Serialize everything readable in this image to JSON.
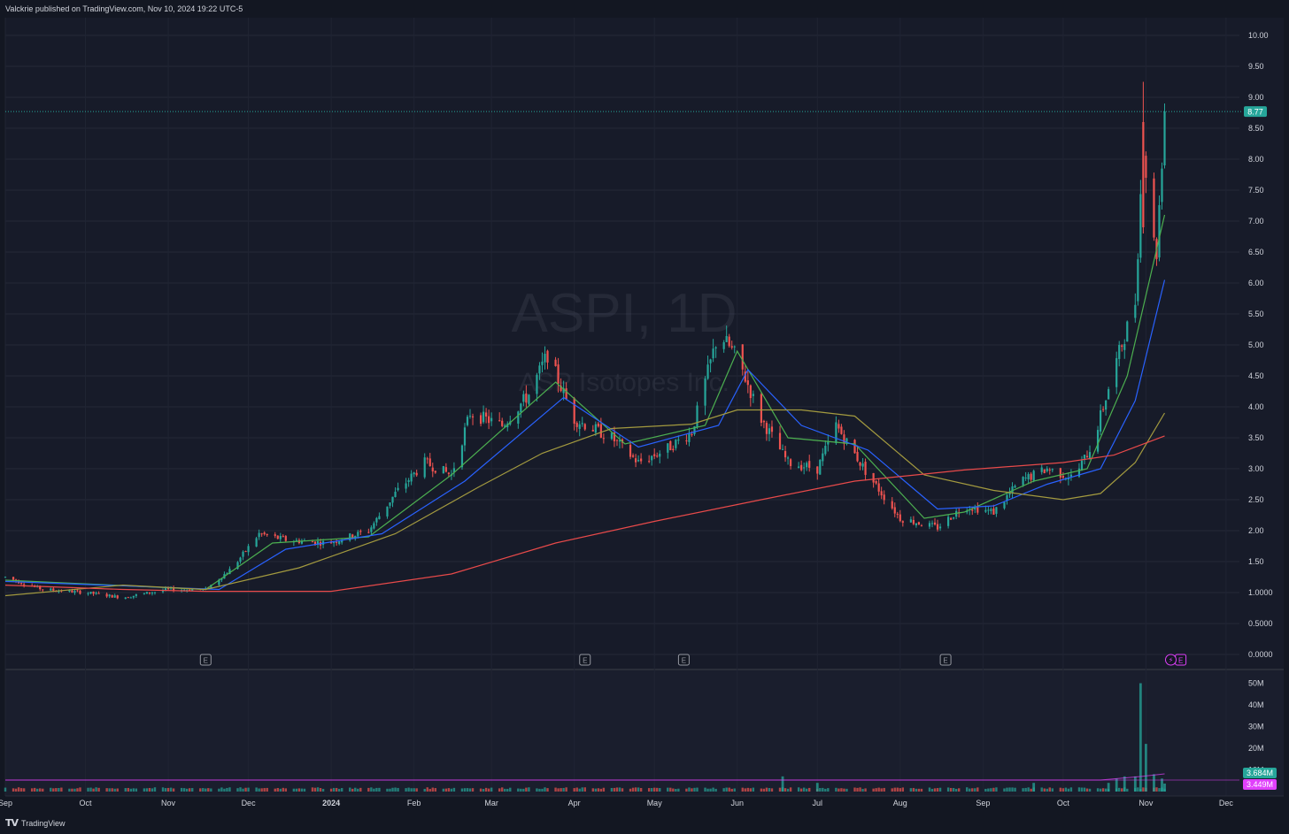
{
  "header": {
    "publish_line": "Valckrie published on TradingView.com, Nov 10, 2024 19:22 UTC-5"
  },
  "watermark": {
    "symbol_line": "ASPI, 1D",
    "company_line": "ASP Isotopes Inc."
  },
  "footer": {
    "brand": "TradingView"
  },
  "colors": {
    "background": "#131722",
    "up": "#26a69a",
    "down": "#ef5350",
    "ema_fast": "#4caf50",
    "ema_mid": "#2962ff",
    "sma_slow": "#a39a3f",
    "sma_long": "#e84a4a",
    "price_label": "#26a69a",
    "vol_label_1": "#26a69a",
    "vol_label_2": "#e040fb"
  },
  "chart_data": {
    "type": "candlestick",
    "symbol": "ASPI",
    "interval": "1D",
    "last_price": "8.77",
    "price_axis_ticks": [
      "10.00",
      "9.50",
      "9.00",
      "8.50",
      "8.00",
      "7.50",
      "7.00",
      "6.50",
      "6.00",
      "5.50",
      "5.00",
      "4.50",
      "4.00",
      "3.50",
      "3.00",
      "2.50",
      "2.00",
      "1.50",
      "1.0000",
      "0.5000",
      "0.0000"
    ],
    "ylim": [
      0,
      10
    ],
    "time_axis_labels": [
      "Sep",
      "Oct",
      "Nov",
      "Dec",
      "2024",
      "Feb",
      "Mar",
      "Apr",
      "May",
      "Jun",
      "Jul",
      "Aug",
      "Sep",
      "Oct",
      "Nov",
      "Dec"
    ],
    "price_path": [
      [
        "2023-09-01",
        1.25
      ],
      [
        "2023-09-15",
        1.05
      ],
      [
        "2023-10-01",
        1.0
      ],
      [
        "2023-10-15",
        0.92
      ],
      [
        "2023-11-01",
        1.05
      ],
      [
        "2023-11-15",
        1.05
      ],
      [
        "2023-11-25",
        1.4
      ],
      [
        "2023-12-05",
        1.95
      ],
      [
        "2023-12-15",
        1.85
      ],
      [
        "2023-12-31",
        1.8
      ],
      [
        "2024-01-15",
        2.0
      ],
      [
        "2024-01-25",
        2.6
      ],
      [
        "2024-02-05",
        3.1
      ],
      [
        "2024-02-15",
        2.9
      ],
      [
        "2024-02-22",
        3.9
      ],
      [
        "2024-03-05",
        3.7
      ],
      [
        "2024-03-15",
        4.2
      ],
      [
        "2024-03-22",
        4.85
      ],
      [
        "2024-04-01",
        3.8
      ],
      [
        "2024-04-15",
        3.5
      ],
      [
        "2024-04-25",
        3.1
      ],
      [
        "2024-05-05",
        3.3
      ],
      [
        "2024-05-15",
        3.6
      ],
      [
        "2024-05-25",
        5.2
      ],
      [
        "2024-06-01",
        4.8
      ],
      [
        "2024-06-10",
        3.8
      ],
      [
        "2024-06-20",
        3.1
      ],
      [
        "2024-07-01",
        3.0
      ],
      [
        "2024-07-08",
        3.7
      ],
      [
        "2024-07-20",
        2.9
      ],
      [
        "2024-08-01",
        2.2
      ],
      [
        "2024-08-15",
        2.05
      ],
      [
        "2024-08-25",
        2.4
      ],
      [
        "2024-09-05",
        2.3
      ],
      [
        "2024-09-15",
        2.8
      ],
      [
        "2024-09-25",
        3.0
      ],
      [
        "2024-10-05",
        2.85
      ],
      [
        "2024-10-12",
        3.4
      ],
      [
        "2024-10-20",
        4.6
      ],
      [
        "2024-10-28",
        5.7
      ],
      [
        "2024-10-31",
        8.3
      ],
      [
        "2024-11-03",
        6.8
      ],
      [
        "2024-11-05",
        6.5
      ],
      [
        "2024-11-08",
        8.77
      ]
    ],
    "moving_averages": [
      {
        "color_key": "ema_fast",
        "path": [
          [
            "2023-09-01",
            1.2
          ],
          [
            "2023-11-15",
            1.05
          ],
          [
            "2023-12-10",
            1.8
          ],
          [
            "2024-01-15",
            1.9
          ],
          [
            "2024-02-15",
            2.9
          ],
          [
            "2024-03-25",
            4.4
          ],
          [
            "2024-04-20",
            3.4
          ],
          [
            "2024-05-20",
            3.7
          ],
          [
            "2024-06-01",
            4.9
          ],
          [
            "2024-06-20",
            3.5
          ],
          [
            "2024-07-15",
            3.4
          ],
          [
            "2024-08-10",
            2.2
          ],
          [
            "2024-08-25",
            2.3
          ],
          [
            "2024-09-20",
            2.8
          ],
          [
            "2024-10-10",
            3.0
          ],
          [
            "2024-10-25",
            4.5
          ],
          [
            "2024-11-08",
            7.1
          ]
        ]
      },
      {
        "color_key": "ema_mid",
        "path": [
          [
            "2023-09-01",
            1.18
          ],
          [
            "2023-11-20",
            1.05
          ],
          [
            "2023-12-15",
            1.7
          ],
          [
            "2024-01-20",
            1.95
          ],
          [
            "2024-02-20",
            2.8
          ],
          [
            "2024-03-28",
            4.15
          ],
          [
            "2024-04-25",
            3.35
          ],
          [
            "2024-05-25",
            3.7
          ],
          [
            "2024-06-05",
            4.6
          ],
          [
            "2024-06-25",
            3.7
          ],
          [
            "2024-07-20",
            3.3
          ],
          [
            "2024-08-15",
            2.35
          ],
          [
            "2024-09-05",
            2.4
          ],
          [
            "2024-09-25",
            2.75
          ],
          [
            "2024-10-15",
            3.0
          ],
          [
            "2024-10-28",
            4.1
          ],
          [
            "2024-11-08",
            6.05
          ]
        ]
      },
      {
        "color_key": "sma_slow",
        "path": [
          [
            "2023-09-01",
            0.95
          ],
          [
            "2023-10-15",
            1.12
          ],
          [
            "2023-11-15",
            1.05
          ],
          [
            "2023-12-20",
            1.4
          ],
          [
            "2024-01-25",
            1.95
          ],
          [
            "2024-02-25",
            2.7
          ],
          [
            "2024-03-20",
            3.25
          ],
          [
            "2024-04-15",
            3.65
          ],
          [
            "2024-05-15",
            3.72
          ],
          [
            "2024-06-01",
            3.95
          ],
          [
            "2024-06-25",
            3.95
          ],
          [
            "2024-07-15",
            3.85
          ],
          [
            "2024-08-10",
            2.9
          ],
          [
            "2024-09-05",
            2.65
          ],
          [
            "2024-10-01",
            2.5
          ],
          [
            "2024-10-15",
            2.6
          ],
          [
            "2024-10-28",
            3.1
          ],
          [
            "2024-11-08",
            3.9
          ]
        ]
      },
      {
        "color_key": "sma_long",
        "path": [
          [
            "2023-09-01",
            1.12
          ],
          [
            "2023-10-15",
            1.05
          ],
          [
            "2023-11-15",
            1.02
          ],
          [
            "2024-01-01",
            1.02
          ],
          [
            "2024-02-15",
            1.3
          ],
          [
            "2024-03-25",
            1.8
          ],
          [
            "2024-05-01",
            2.15
          ],
          [
            "2024-06-10",
            2.5
          ],
          [
            "2024-07-15",
            2.8
          ],
          [
            "2024-08-25",
            2.98
          ],
          [
            "2024-10-01",
            3.1
          ],
          [
            "2024-10-20",
            3.22
          ],
          [
            "2024-11-08",
            3.53
          ]
        ]
      }
    ],
    "volume": {
      "axis_ticks": [
        "50M",
        "40M",
        "30M",
        "20M",
        "10M"
      ],
      "last_volume_label": "3.684M",
      "avg_volume_label": "3.449M",
      "spikes": [
        [
          "2024-06-18",
          7
        ],
        [
          "2024-07-01",
          4
        ],
        [
          "2024-09-20",
          4
        ],
        [
          "2024-10-18",
          4
        ],
        [
          "2024-10-21",
          6
        ],
        [
          "2024-10-24",
          7
        ],
        [
          "2024-10-28",
          7
        ],
        [
          "2024-10-30",
          50
        ],
        [
          "2024-11-01",
          22
        ],
        [
          "2024-11-04",
          8
        ],
        [
          "2024-11-07",
          6
        ],
        [
          "2024-11-08",
          3.684
        ]
      ]
    },
    "event_markers": {
      "earnings_dates": [
        "2023-11-15",
        "2024-04-05",
        "2024-05-12",
        "2024-08-18",
        "2024-11-14"
      ],
      "dividend_dates": [
        "2024-11-08"
      ],
      "earnings_glyph": "E",
      "dividend_glyph": "⚡"
    },
    "grid": true,
    "legend": "none"
  }
}
